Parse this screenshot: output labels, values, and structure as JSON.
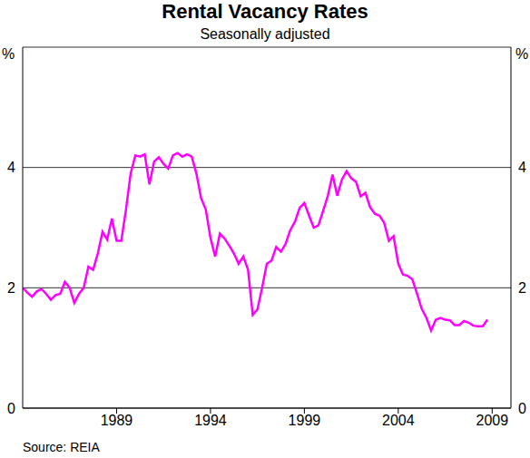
{
  "chart_data": {
    "type": "line",
    "title": "Rental Vacancy Rates",
    "subtitle": "Seasonally adjusted",
    "y_label": "%",
    "source": "Source: REIA",
    "x": [
      1984,
      1984.25,
      1984.5,
      1984.75,
      1985,
      1985.25,
      1985.5,
      1985.75,
      1986,
      1986.25,
      1986.5,
      1986.75,
      1987,
      1987.25,
      1987.5,
      1987.75,
      1988,
      1988.25,
      1988.5,
      1988.75,
      1989,
      1989.25,
      1989.5,
      1989.75,
      1990,
      1990.25,
      1990.5,
      1990.75,
      1991,
      1991.25,
      1991.5,
      1991.75,
      1992,
      1992.25,
      1992.5,
      1992.75,
      1993,
      1993.25,
      1993.5,
      1993.75,
      1994,
      1994.25,
      1994.5,
      1994.75,
      1995,
      1995.25,
      1995.5,
      1995.75,
      1996,
      1996.25,
      1996.5,
      1996.75,
      1997,
      1997.25,
      1997.5,
      1997.75,
      1998,
      1998.25,
      1998.5,
      1998.75,
      1999,
      1999.25,
      1999.5,
      1999.75,
      2000,
      2000.25,
      2000.5,
      2000.75,
      2001,
      2001.25,
      2001.5,
      2001.75,
      2002,
      2002.25,
      2002.5,
      2002.75,
      2003,
      2003.25,
      2003.5,
      2003.75,
      2004,
      2004.25,
      2004.5,
      2004.75,
      2005,
      2005.25,
      2005.5,
      2005.75,
      2006,
      2006.25,
      2006.5,
      2006.75,
      2007,
      2007.25,
      2007.5,
      2007.75,
      2008,
      2008.25,
      2008.5,
      2008.75
    ],
    "values": [
      2.0,
      1.92,
      1.85,
      1.94,
      1.98,
      1.9,
      1.8,
      1.88,
      1.9,
      2.1,
      2.0,
      1.75,
      1.9,
      2.0,
      2.35,
      2.3,
      2.57,
      2.93,
      2.8,
      3.15,
      2.78,
      2.78,
      3.3,
      3.9,
      4.2,
      4.18,
      4.22,
      3.72,
      4.1,
      4.17,
      4.06,
      3.98,
      4.2,
      4.24,
      4.18,
      4.22,
      4.18,
      3.9,
      3.49,
      3.3,
      2.83,
      2.52,
      2.9,
      2.82,
      2.7,
      2.57,
      2.4,
      2.52,
      2.3,
      1.55,
      1.64,
      2.0,
      2.4,
      2.45,
      2.68,
      2.6,
      2.73,
      2.96,
      3.1,
      3.33,
      3.41,
      3.2,
      3.0,
      3.04,
      3.28,
      3.53,
      3.88,
      3.53,
      3.8,
      3.94,
      3.82,
      3.76,
      3.52,
      3.58,
      3.34,
      3.23,
      3.2,
      3.08,
      2.78,
      2.86,
      2.4,
      2.22,
      2.2,
      2.14,
      1.9,
      1.65,
      1.5,
      1.29,
      1.47,
      1.5,
      1.47,
      1.46,
      1.38,
      1.38,
      1.45,
      1.42,
      1.37,
      1.36,
      1.36,
      1.47
    ],
    "color": "#ff00ff",
    "xlim": [
      1984,
      2010
    ],
    "xticks": [
      1989,
      1994,
      1999,
      2004,
      2009
    ],
    "ylim": [
      0,
      6
    ],
    "yticks": [
      0,
      2,
      4
    ],
    "grid": true
  }
}
